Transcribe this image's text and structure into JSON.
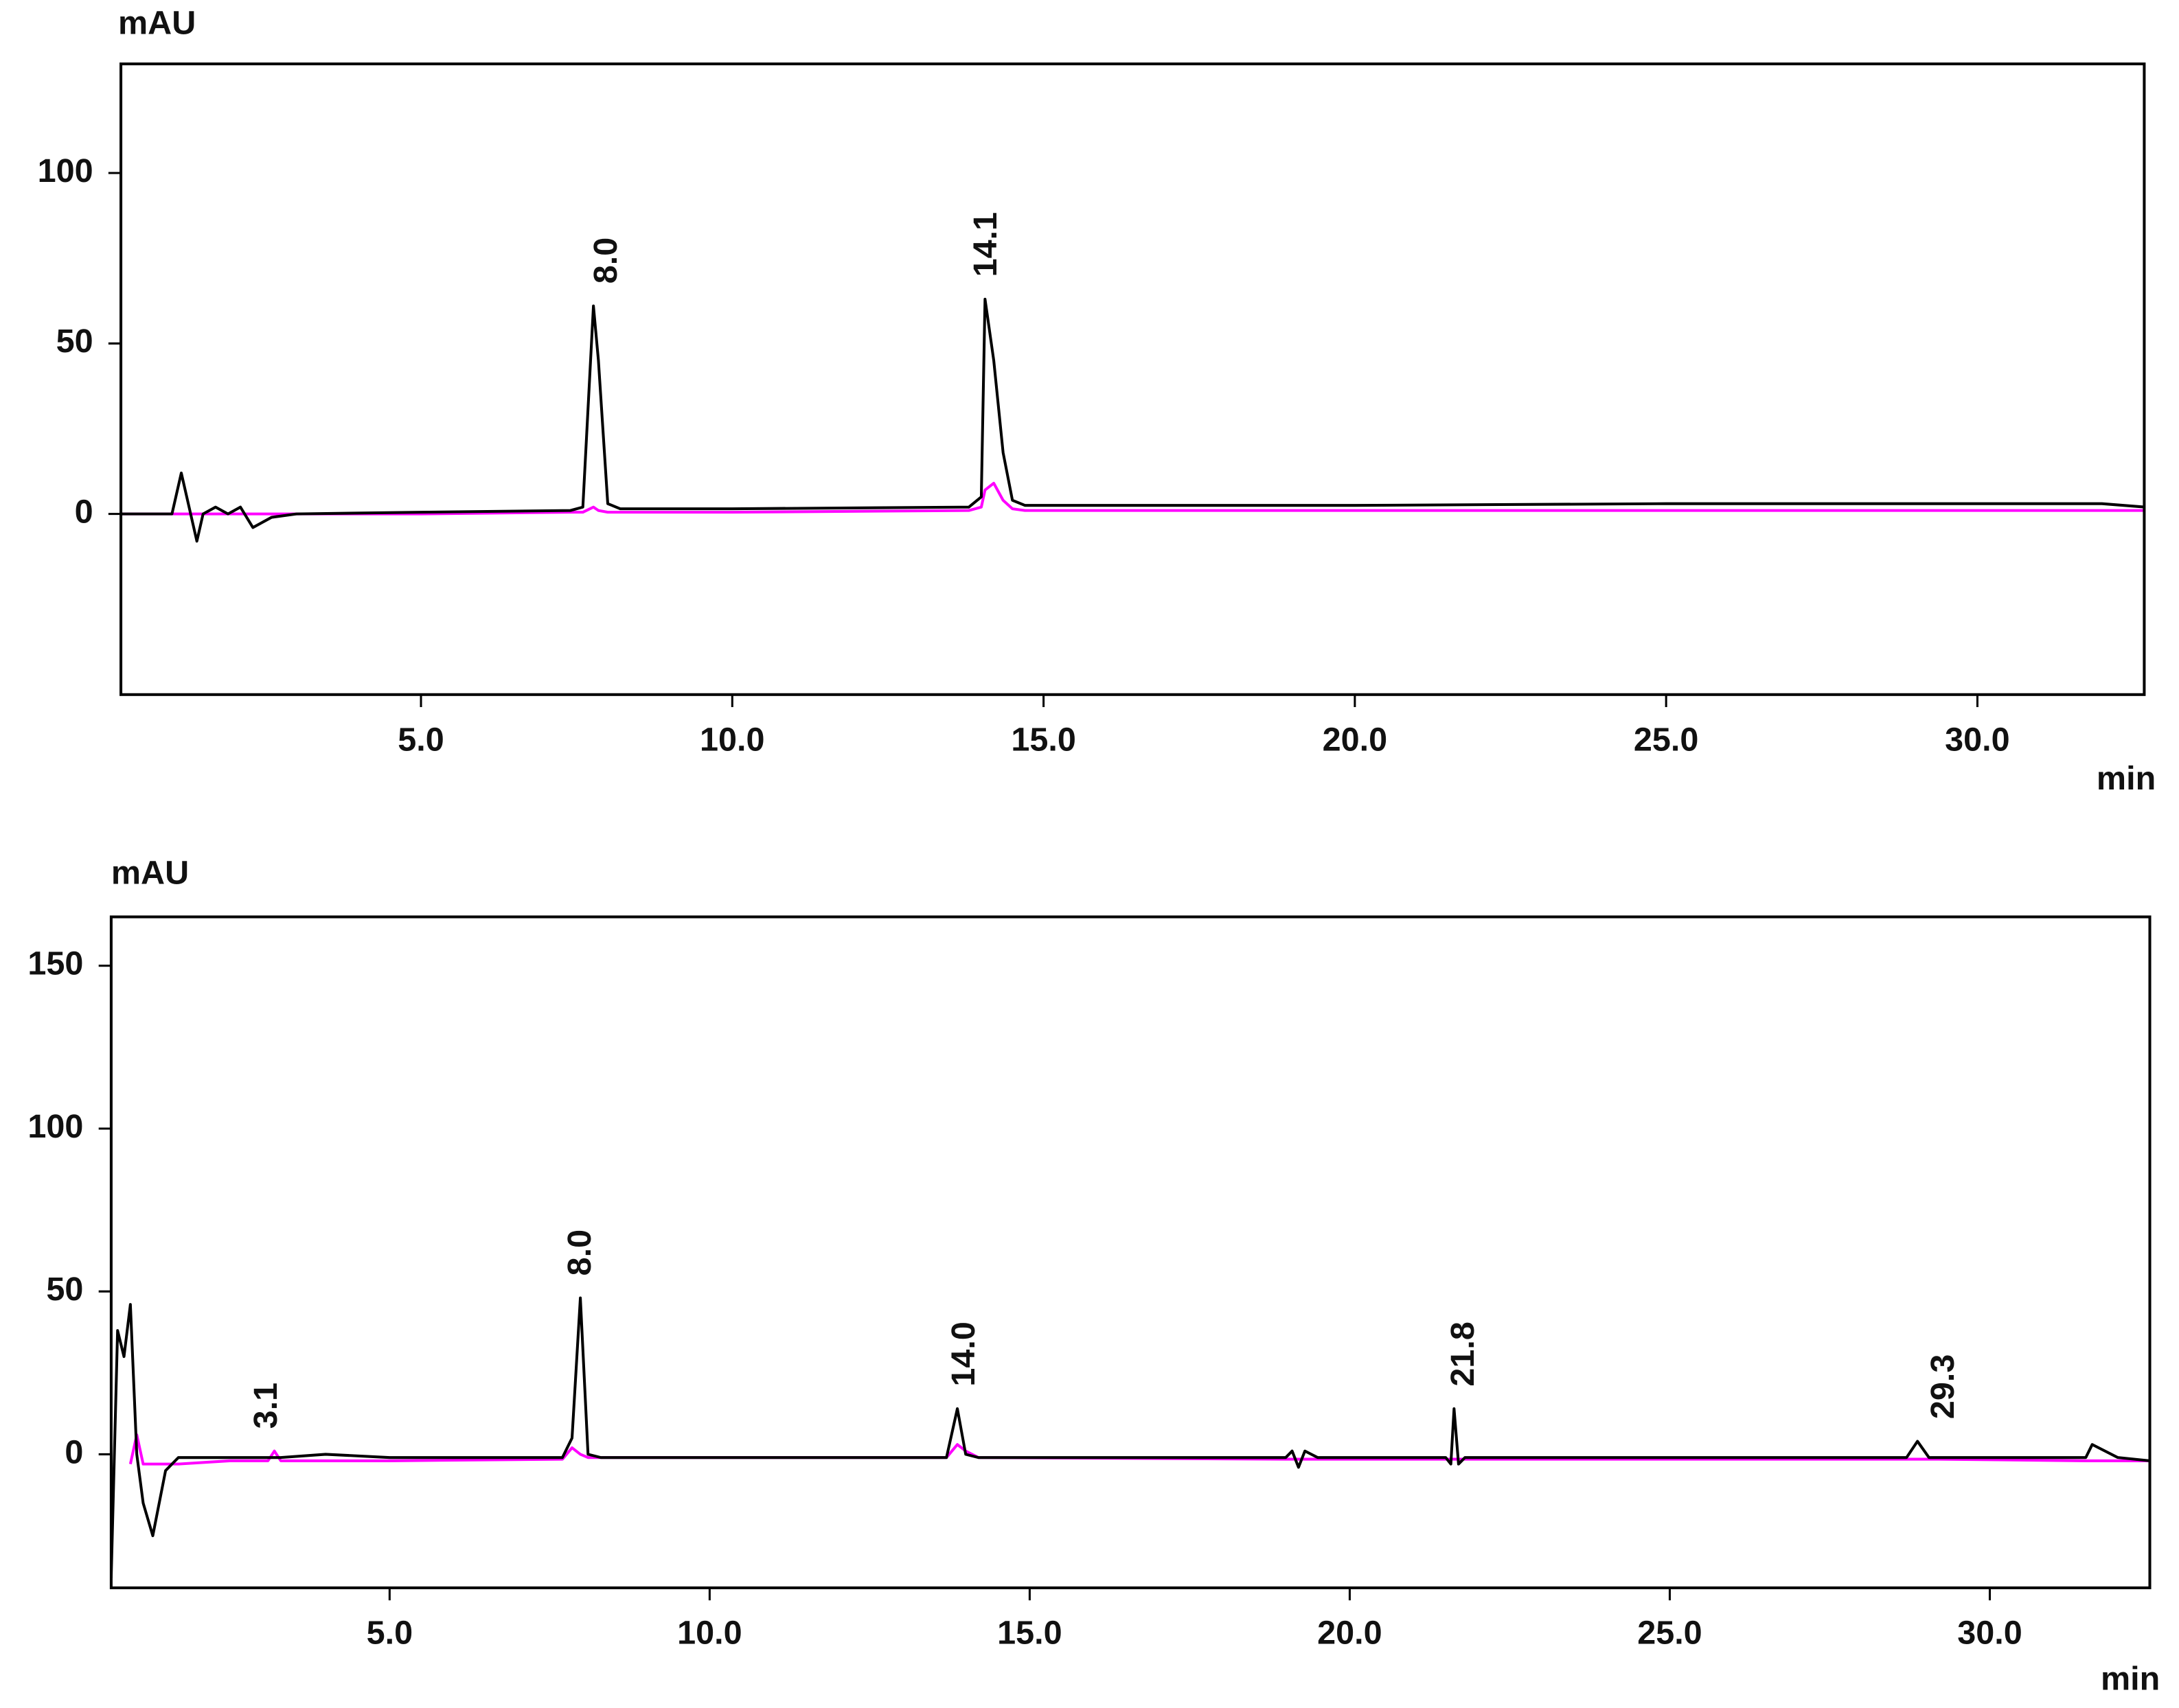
{
  "chart_data": [
    {
      "type": "line",
      "y_label": "mAU",
      "x_label": "min",
      "x": [
        0.2,
        1.0,
        1.15,
        1.3,
        1.4,
        1.5,
        1.7,
        1.9,
        2.1,
        2.3,
        2.6,
        3.0,
        5.0,
        7.4,
        7.6,
        7.77,
        7.85,
        8.0,
        8.2,
        10.0,
        13.8,
        14.0,
        14.06,
        14.2,
        14.35,
        14.5,
        14.7,
        16.0,
        20.0,
        25.0,
        30.0,
        32.0,
        32.7
      ],
      "series": [
        {
          "color": "#000000",
          "values": [
            0,
            0,
            12,
            0,
            -8,
            0,
            2,
            0,
            2,
            -4,
            -1,
            0,
            0.5,
            1,
            2,
            61,
            45,
            3,
            1.5,
            1.5,
            2,
            5,
            63,
            45,
            18,
            4,
            2.5,
            2.5,
            2.5,
            3,
            3,
            3,
            2
          ]
        },
        {
          "color": "#ff00ff",
          "values": [
            0,
            0,
            0,
            0,
            0,
            0,
            0,
            0,
            0,
            0,
            0,
            0,
            0,
            0.5,
            0.5,
            2,
            1,
            0.5,
            0.5,
            0.5,
            1,
            2,
            7,
            9,
            4,
            1.5,
            1,
            1,
            1,
            1,
            1,
            1,
            1
          ]
        }
      ],
      "peak_labels": [
        {
          "value": 8.0,
          "label": "8.0"
        },
        {
          "value": 14.1,
          "label": "14.1"
        }
      ],
      "xlim": [
        0.18,
        32.68
      ],
      "ylim": [
        -53,
        132
      ],
      "xticks": [
        {
          "value": 5,
          "label": "5.0"
        },
        {
          "value": 10,
          "label": "10.0"
        },
        {
          "value": 15,
          "label": "15.0"
        },
        {
          "value": 20,
          "label": "20.0"
        },
        {
          "value": 25,
          "label": "25.0"
        },
        {
          "value": 30,
          "label": "30.0"
        }
      ],
      "yticks": [
        0,
        50,
        100
      ]
    },
    {
      "type": "line",
      "y_label": "mAU",
      "x_label": "min",
      "x": [
        0.65,
        0.75,
        0.85,
        0.95,
        1.05,
        1.15,
        1.3,
        1.5,
        1.7,
        2.5,
        3.1,
        3.2,
        3.3,
        4.0,
        5.0,
        7.7,
        7.85,
        7.98,
        8.1,
        8.3,
        10.0,
        13.7,
        13.87,
        14.0,
        14.2,
        19.0,
        19.1,
        19.2,
        19.3,
        19.5,
        21.5,
        21.58,
        21.63,
        21.7,
        21.8,
        28.7,
        28.87,
        29.05,
        29.2,
        31.5,
        31.6,
        32.0,
        32.5
      ],
      "series": [
        {
          "color": "#000000",
          "values": [
            -38,
            38,
            30,
            46,
            0,
            -15,
            -25,
            -5,
            -1,
            -1,
            -1,
            -1,
            -1,
            0,
            -1,
            -1,
            5,
            48,
            0,
            -1,
            -1,
            -1,
            14,
            0,
            -1,
            -1,
            1,
            -4,
            1,
            -1,
            -1,
            -3,
            14,
            -3,
            -1,
            -1,
            4,
            -1,
            -1,
            -1,
            3,
            -1,
            -2
          ]
        },
        {
          "color": "#ff00ff",
          "values": [
            null,
            null,
            null,
            -3,
            6,
            -3,
            -3,
            -3,
            -3,
            -2,
            -2,
            1,
            -2,
            -2,
            -2,
            -1.5,
            2,
            0,
            -1,
            -1,
            -1,
            -1,
            3,
            1,
            -1,
            -1.5,
            -1.5,
            -1.5,
            -1.5,
            -1.5,
            -1.5,
            -1.5,
            -1.5,
            -1.5,
            -1.5,
            -1.5,
            -1.5,
            -1.5,
            -1.5,
            -2,
            -2,
            -2,
            -2
          ]
        }
      ],
      "peak_labels": [
        {
          "value": 3.1,
          "label": "3.1"
        },
        {
          "value": 8.0,
          "label": "8.0"
        },
        {
          "value": 14.0,
          "label": "14.0"
        },
        {
          "value": 21.8,
          "label": "21.8"
        },
        {
          "value": 29.3,
          "label": "29.3"
        }
      ],
      "xlim": [
        0.65,
        32.5
      ],
      "ylim": [
        -41,
        165
      ],
      "xticks": [
        {
          "value": 5,
          "label": "5.0"
        },
        {
          "value": 10,
          "label": "10.0"
        },
        {
          "value": 15,
          "label": "15.0"
        },
        {
          "value": 20,
          "label": "20.0"
        },
        {
          "value": 25,
          "label": "25.0"
        },
        {
          "value": 30,
          "label": "30.0"
        }
      ],
      "yticks": [
        0,
        50,
        100,
        150
      ]
    }
  ]
}
